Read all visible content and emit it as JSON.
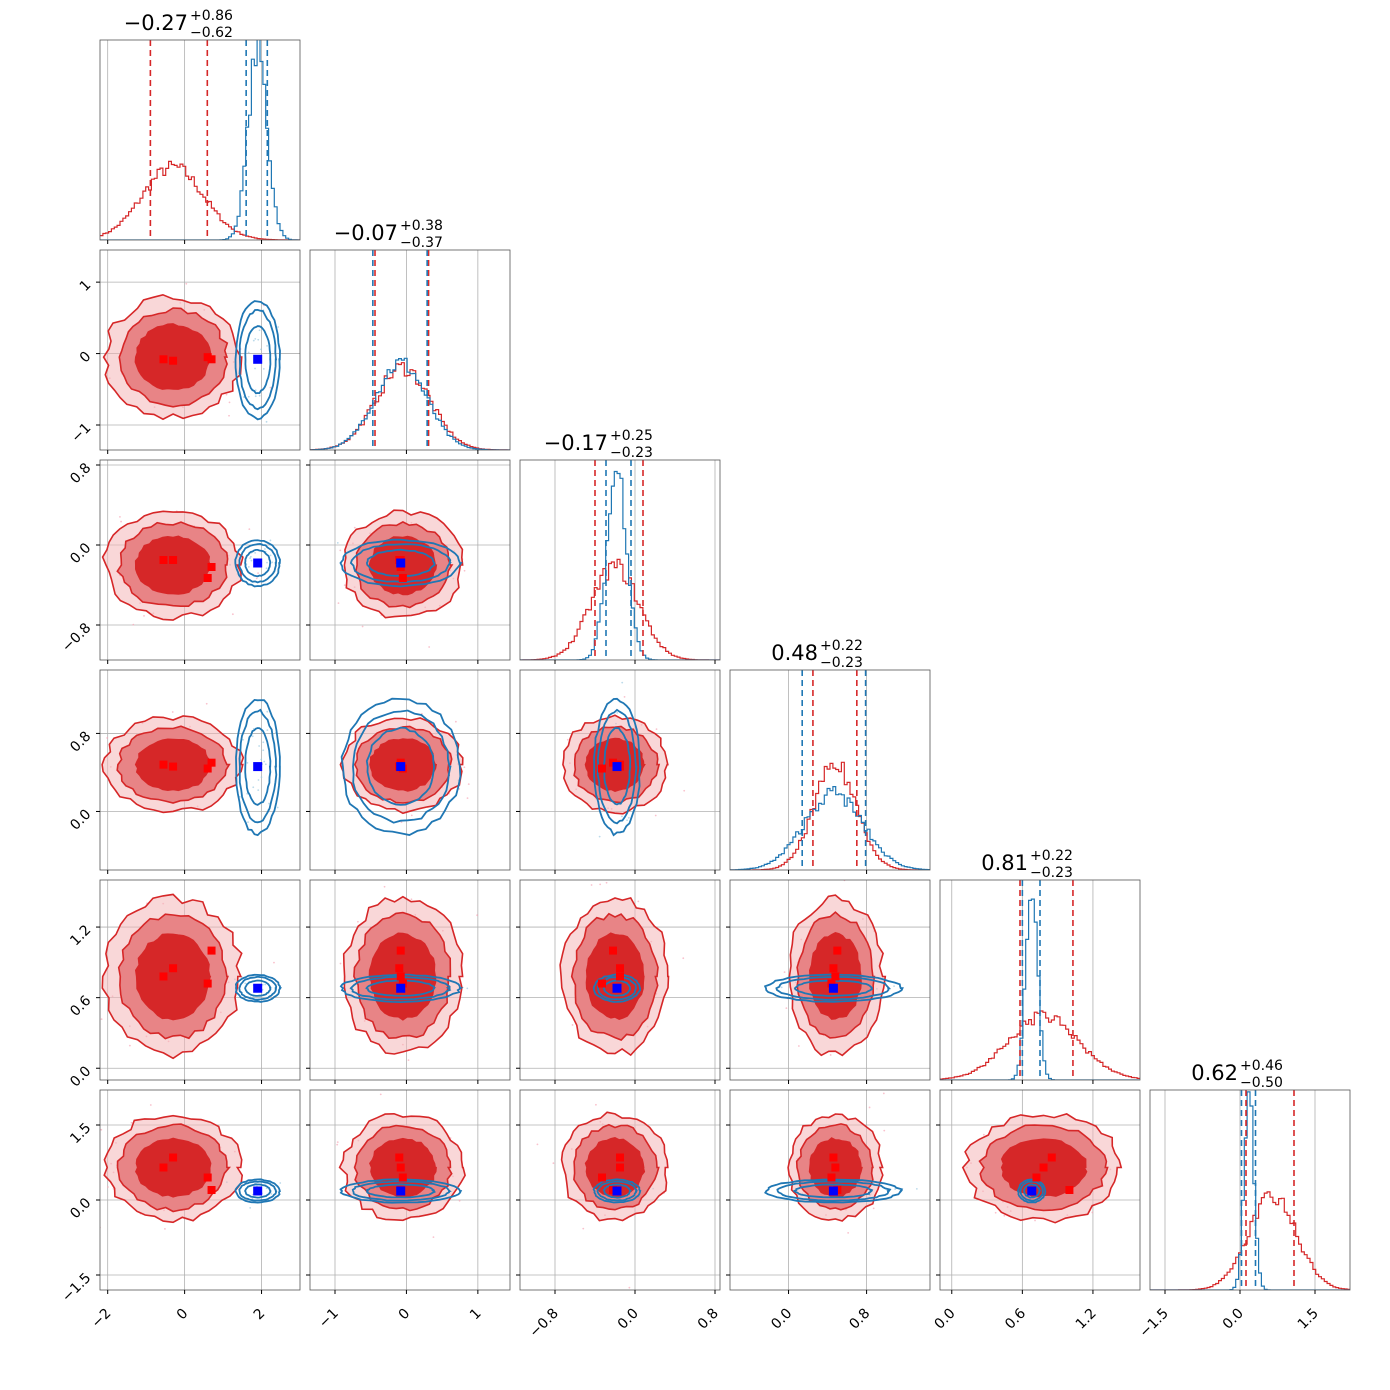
{
  "chart_data": {
    "type": "corner",
    "parameters": 6,
    "series": [
      {
        "color": "#d62728",
        "marker_color": "#ff0000"
      },
      {
        "color": "#1f77b4",
        "marker_color": "#0000ff"
      }
    ],
    "titles": [
      {
        "median": "−0.27",
        "plus": "+0.86",
        "minus": "−0.62"
      },
      {
        "median": "−0.07",
        "plus": "+0.38",
        "minus": "−0.37"
      },
      {
        "median": "−0.17",
        "plus": "+0.25",
        "minus": "−0.23"
      },
      {
        "median": "0.48",
        "plus": "+0.22",
        "minus": "−0.23"
      },
      {
        "median": "0.81",
        "plus": "+0.22",
        "minus": "−0.23"
      },
      {
        "median": "0.62",
        "plus": "+0.46",
        "minus": "−0.50"
      }
    ],
    "axes": [
      {
        "range": [
          -2.2,
          3.0
        ],
        "ticks": [
          -2,
          0,
          2
        ],
        "tick_labels": [
          "−2",
          "0",
          "2"
        ]
      },
      {
        "range": [
          -1.35,
          1.45
        ],
        "ticks": [
          -1,
          0,
          1
        ],
        "tick_labels": [
          "−1",
          "0",
          "1"
        ]
      },
      {
        "range": [
          -1.15,
          0.85
        ],
        "ticks": [
          -0.8,
          0.0,
          0.8
        ],
        "tick_labels": [
          "−0.8",
          "0.0",
          "0.8"
        ]
      },
      {
        "range": [
          -0.6,
          1.45
        ],
        "ticks": [
          0.0,
          0.8
        ],
        "tick_labels": [
          "0.0",
          "0.8"
        ]
      },
      {
        "range": [
          -0.1,
          1.6
        ],
        "ticks": [
          0.0,
          0.6,
          1.2
        ],
        "tick_labels": [
          "0.0",
          "0.6",
          "1.2"
        ]
      },
      {
        "range": [
          -1.8,
          2.2
        ],
        "ticks": [
          -1.5,
          0.0,
          1.5
        ],
        "tick_labels": [
          "−1.5",
          "0.0",
          "1.5"
        ]
      }
    ],
    "red": {
      "center": [
        -0.3,
        -0.05,
        -0.2,
        0.48,
        0.78,
        0.65
      ],
      "sigma": [
        0.8,
        0.38,
        0.24,
        0.22,
        0.3,
        0.48
      ],
      "quantiles": [
        [
          -0.89,
          0.59
        ],
        [
          -0.44,
          0.31
        ],
        [
          -0.4,
          0.08
        ],
        [
          0.25,
          0.7
        ],
        [
          0.58,
          1.03
        ],
        [
          0.12,
          1.08
        ]
      ],
      "markers": [
        [
          -0.55,
          -0.08,
          -0.15,
          0.48,
          0.78,
          0.65
        ],
        [
          -0.3,
          -0.1,
          -0.15,
          0.46,
          0.85,
          0.85
        ],
        [
          0.6,
          -0.05,
          -0.33,
          0.44,
          0.72,
          0.45
        ],
        [
          0.7,
          -0.08,
          -0.22,
          0.5,
          1.0,
          0.2
        ]
      ]
    },
    "blue": {
      "center": [
        1.9,
        -0.08,
        -0.18,
        0.46,
        0.68,
        0.18
      ],
      "sigma": [
        0.25,
        0.36,
        0.1,
        0.3,
        0.05,
        0.1
      ],
      "quantiles": [
        [
          1.6,
          2.15
        ],
        [
          -0.47,
          0.29
        ],
        [
          -0.29,
          -0.04
        ],
        [
          0.14,
          0.79
        ],
        [
          0.6,
          0.75
        ],
        [
          0.03,
          0.31
        ]
      ],
      "truth": [
        1.9,
        -0.08,
        -0.18,
        0.46,
        0.68,
        0.18
      ]
    }
  }
}
